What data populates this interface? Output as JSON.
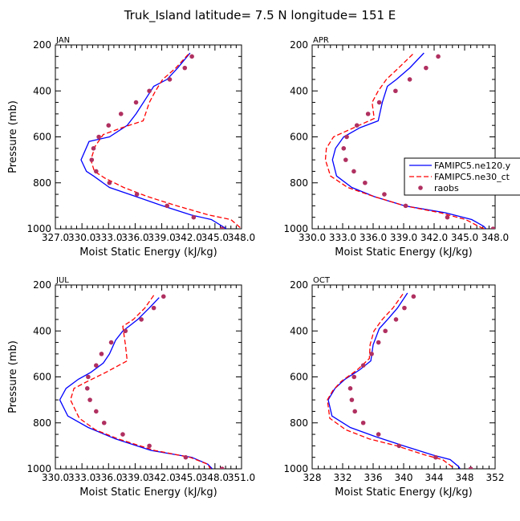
{
  "figure": {
    "title": "Truk_Island   latitude= 7.5 N longitude= 151 E"
  },
  "legend": {
    "placement": "right, overlapping APR panel",
    "entries": [
      {
        "label": "FAMIPC5.ne120.y",
        "color": "#0000ff",
        "style": "solid"
      },
      {
        "label": "FAMIPC5.ne30_ct",
        "color": "#ff0000",
        "style": "dashed"
      },
      {
        "label": "raobs",
        "color": "#b03060",
        "style": "dots"
      }
    ]
  },
  "chart_data": [
    {
      "type": "line",
      "panel": "JAN",
      "xlabel": "Moist Static Energy (kJ/kg)",
      "ylabel": "Pressure (mb)",
      "xlim": [
        327.0,
        348.0
      ],
      "xticks": [
        327.0,
        330.0,
        333.0,
        336.0,
        339.0,
        342.0,
        345.0,
        348.0
      ],
      "xtick_labels": [
        "327.0",
        "330.0",
        "333.0",
        "336.0",
        "339.0",
        "342.0",
        "345.0",
        "348.0"
      ],
      "ylim": [
        200,
        1000
      ],
      "yticks": [
        200,
        400,
        600,
        800,
        1000
      ],
      "ytick_labels": [
        "200",
        "400",
        "600",
        "800",
        "1000"
      ],
      "y_inverted": true,
      "series": [
        {
          "name": "FAMIPC5.ne120.y",
          "color": "#0000ff",
          "style": "solid",
          "points": [
            [
              342.2,
              235
            ],
            [
              340.8,
              300
            ],
            [
              339.6,
              350
            ],
            [
              338.1,
              380
            ],
            [
              337.1,
              440
            ],
            [
              336.1,
              500
            ],
            [
              335.1,
              550
            ],
            [
              333.1,
              600
            ],
            [
              330.8,
              620
            ],
            [
              329.9,
              700
            ],
            [
              330.5,
              750
            ],
            [
              331.3,
              770
            ],
            [
              333.1,
              820
            ],
            [
              336.1,
              860
            ],
            [
              339.1,
              900
            ],
            [
              342.3,
              940
            ],
            [
              344.6,
              960
            ],
            [
              346.3,
              1000
            ]
          ]
        },
        {
          "name": "FAMIPC5.ne30_ct",
          "color": "#ff0000",
          "style": "dashed",
          "points": [
            [
              342.0,
              240
            ],
            [
              340.6,
              300
            ],
            [
              339.1,
              350
            ],
            [
              338.3,
              400
            ],
            [
              337.6,
              450
            ],
            [
              336.9,
              530
            ],
            [
              334.5,
              560
            ],
            [
              332.4,
              590
            ],
            [
              331.5,
              640
            ],
            [
              331.0,
              700
            ],
            [
              331.4,
              750
            ],
            [
              332.6,
              780
            ],
            [
              334.7,
              820
            ],
            [
              337.4,
              860
            ],
            [
              340.7,
              900
            ],
            [
              344.3,
              940
            ],
            [
              346.8,
              960
            ],
            [
              348.0,
              1000
            ]
          ]
        },
        {
          "name": "raobs",
          "color": "#b03060",
          "style": "dots",
          "points": [
            [
              342.4,
              250
            ],
            [
              341.6,
              300
            ],
            [
              339.9,
              350
            ],
            [
              337.6,
              400
            ],
            [
              336.1,
              450
            ],
            [
              334.4,
              500
            ],
            [
              333.0,
              550
            ],
            [
              331.9,
              600
            ],
            [
              331.3,
              650
            ],
            [
              331.1,
              700
            ],
            [
              331.6,
              750
            ],
            [
              333.1,
              800
            ],
            [
              336.2,
              850
            ],
            [
              339.6,
              900
            ],
            [
              342.6,
              950
            ],
            [
              345.8,
              1000
            ]
          ]
        }
      ]
    },
    {
      "type": "line",
      "panel": "APR",
      "xlabel": "Moist Static Energy (kJ/kg)",
      "ylabel": "",
      "xlim": [
        330.0,
        348.0
      ],
      "xticks": [
        330.0,
        333.0,
        336.0,
        339.0,
        342.0,
        345.0,
        348.0
      ],
      "xtick_labels": [
        "330.0",
        "333.0",
        "336.0",
        "339.0",
        "342.0",
        "345.0",
        "348.0"
      ],
      "ylim": [
        200,
        1000
      ],
      "yticks": [
        200,
        400,
        600,
        800,
        1000
      ],
      "ytick_labels": [
        "200",
        "400",
        "600",
        "800",
        "1000"
      ],
      "y_inverted": true,
      "series": [
        {
          "name": "FAMIPC5.ne120.y",
          "color": "#0000ff",
          "style": "solid",
          "points": [
            [
              341.0,
              235
            ],
            [
              339.6,
              300
            ],
            [
              338.3,
              350
            ],
            [
              337.4,
              380
            ],
            [
              336.9,
              450
            ],
            [
              336.5,
              530
            ],
            [
              334.7,
              560
            ],
            [
              333.1,
              600
            ],
            [
              332.3,
              650
            ],
            [
              332.0,
              700
            ],
            [
              332.4,
              770
            ],
            [
              333.9,
              820
            ],
            [
              336.1,
              860
            ],
            [
              339.1,
              900
            ],
            [
              343.1,
              930
            ],
            [
              345.7,
              960
            ],
            [
              346.9,
              990
            ],
            [
              347.1,
              1000
            ]
          ]
        },
        {
          "name": "FAMIPC5.ne30_ct",
          "color": "#ff0000",
          "style": "dashed",
          "points": [
            [
              339.9,
              240
            ],
            [
              338.5,
              300
            ],
            [
              337.3,
              350
            ],
            [
              336.5,
              400
            ],
            [
              335.9,
              450
            ],
            [
              336.1,
              520
            ],
            [
              334.1,
              560
            ],
            [
              332.1,
              600
            ],
            [
              331.4,
              650
            ],
            [
              331.3,
              700
            ],
            [
              331.8,
              770
            ],
            [
              333.5,
              820
            ],
            [
              336.1,
              860
            ],
            [
              339.1,
              900
            ],
            [
              342.6,
              930
            ],
            [
              345.1,
              960
            ],
            [
              346.4,
              990
            ],
            [
              346.9,
              1000
            ]
          ]
        },
        {
          "name": "raobs",
          "color": "#b03060",
          "style": "dots",
          "points": [
            [
              342.4,
              250
            ],
            [
              341.2,
              300
            ],
            [
              339.6,
              350
            ],
            [
              338.2,
              400
            ],
            [
              336.6,
              450
            ],
            [
              335.5,
              500
            ],
            [
              334.4,
              550
            ],
            [
              333.4,
              600
            ],
            [
              333.1,
              650
            ],
            [
              333.3,
              700
            ],
            [
              334.1,
              750
            ],
            [
              335.2,
              800
            ],
            [
              337.1,
              850
            ],
            [
              339.2,
              900
            ],
            [
              343.3,
              950
            ],
            [
              347.8,
              1000
            ]
          ]
        }
      ]
    },
    {
      "type": "line",
      "panel": "JUL",
      "xlabel": "Moist Static Energy (kJ/kg)",
      "ylabel": "Pressure (mb)",
      "xlim": [
        330.0,
        351.0
      ],
      "xticks": [
        330.0,
        333.0,
        336.0,
        339.0,
        342.0,
        345.0,
        348.0,
        351.0
      ],
      "xtick_labels": [
        "330.0",
        "333.0",
        "336.0",
        "339.0",
        "342.0",
        "345.0",
        "348.0",
        "351.0"
      ],
      "ylim": [
        200,
        1000
      ],
      "yticks": [
        200,
        400,
        600,
        800,
        1000
      ],
      "ytick_labels": [
        "200",
        "400",
        "600",
        "800",
        "1000"
      ],
      "y_inverted": true,
      "series": [
        {
          "name": "FAMIPC5.ne120.y",
          "color": "#0000ff",
          "style": "solid",
          "points": [
            [
              341.7,
              255
            ],
            [
              340.6,
              300
            ],
            [
              339.3,
              350
            ],
            [
              338.3,
              380
            ],
            [
              337.6,
              400
            ],
            [
              336.8,
              440
            ],
            [
              336.1,
              500
            ],
            [
              335.4,
              540
            ],
            [
              334.0,
              580
            ],
            [
              332.6,
              610
            ],
            [
              331.2,
              650
            ],
            [
              330.5,
              700
            ],
            [
              331.4,
              770
            ],
            [
              333.7,
              820
            ],
            [
              336.8,
              870
            ],
            [
              340.8,
              920
            ],
            [
              345.4,
              950
            ],
            [
              347.2,
              980
            ],
            [
              347.7,
              1000
            ]
          ]
        },
        {
          "name": "FAMIPC5.ne30_ct",
          "color": "#ff0000",
          "style": "dashed",
          "points": [
            [
              341.1,
              245
            ],
            [
              340.1,
              300
            ],
            [
              338.8,
              350
            ],
            [
              337.6,
              380
            ],
            [
              337.9,
              460
            ],
            [
              338.1,
              530
            ],
            [
              335.7,
              580
            ],
            [
              333.6,
              620
            ],
            [
              332.1,
              650
            ],
            [
              331.7,
              700
            ],
            [
              332.7,
              780
            ],
            [
              334.5,
              830
            ],
            [
              337.1,
              870
            ],
            [
              341.2,
              920
            ],
            [
              345.2,
              950
            ],
            [
              347.2,
              980
            ],
            [
              347.5,
              1000
            ]
          ]
        },
        {
          "name": "raobs",
          "color": "#b03060",
          "style": "dots",
          "points": [
            [
              342.2,
              250
            ],
            [
              341.1,
              300
            ],
            [
              339.7,
              350
            ],
            [
              337.9,
              400
            ],
            [
              336.3,
              450
            ],
            [
              335.2,
              500
            ],
            [
              334.6,
              550
            ],
            [
              333.7,
              600
            ],
            [
              333.6,
              650
            ],
            [
              333.9,
              700
            ],
            [
              334.6,
              750
            ],
            [
              335.5,
              800
            ],
            [
              337.6,
              850
            ],
            [
              340.6,
              900
            ],
            [
              344.7,
              950
            ],
            [
              348.8,
              1000
            ]
          ]
        }
      ]
    },
    {
      "type": "line",
      "panel": "OCT",
      "xlabel": "Moist Static Energy (kJ/kg)",
      "ylabel": "",
      "xlim": [
        328,
        352
      ],
      "xticks": [
        328,
        332,
        336,
        340,
        344,
        348,
        352
      ],
      "xtick_labels": [
        "328",
        "332",
        "336",
        "340",
        "344",
        "348",
        "352"
      ],
      "ylim": [
        200,
        1000
      ],
      "yticks": [
        200,
        400,
        600,
        800,
        1000
      ],
      "ytick_labels": [
        "200",
        "400",
        "600",
        "800",
        "1000"
      ],
      "y_inverted": true,
      "series": [
        {
          "name": "FAMIPC5.ne120.y",
          "color": "#0000ff",
          "style": "solid",
          "points": [
            [
              340.5,
              235
            ],
            [
              339.2,
              300
            ],
            [
              337.9,
              350
            ],
            [
              336.8,
              390
            ],
            [
              336.0,
              460
            ],
            [
              335.7,
              530
            ],
            [
              334.2,
              570
            ],
            [
              332.3,
              610
            ],
            [
              331.0,
              650
            ],
            [
              330.1,
              700
            ],
            [
              330.6,
              770
            ],
            [
              333.0,
              820
            ],
            [
              336.3,
              860
            ],
            [
              340.0,
              900
            ],
            [
              343.8,
              940
            ],
            [
              346.1,
              960
            ],
            [
              347.2,
              990
            ],
            [
              347.4,
              1000
            ]
          ]
        },
        {
          "name": "FAMIPC5.ne30_ct",
          "color": "#ff0000",
          "style": "dashed",
          "points": [
            [
              339.9,
              240
            ],
            [
              338.6,
              300
            ],
            [
              337.2,
              350
            ],
            [
              336.1,
              400
            ],
            [
              335.6,
              460
            ],
            [
              335.5,
              520
            ],
            [
              333.9,
              570
            ],
            [
              331.8,
              620
            ],
            [
              330.7,
              660
            ],
            [
              330.0,
              700
            ],
            [
              330.3,
              780
            ],
            [
              332.4,
              830
            ],
            [
              335.5,
              870
            ],
            [
              339.1,
              900
            ],
            [
              342.8,
              940
            ],
            [
              345.1,
              960
            ],
            [
              346.3,
              990
            ],
            [
              346.6,
              1000
            ]
          ]
        },
        {
          "name": "raobs",
          "color": "#b03060",
          "style": "dots",
          "points": [
            [
              341.3,
              250
            ],
            [
              340.1,
              300
            ],
            [
              339.0,
              350
            ],
            [
              337.6,
              400
            ],
            [
              336.7,
              450
            ],
            [
              335.8,
              500
            ],
            [
              334.7,
              550
            ],
            [
              333.5,
              600
            ],
            [
              333.0,
              650
            ],
            [
              333.2,
              700
            ],
            [
              333.6,
              750
            ],
            [
              334.7,
              800
            ],
            [
              336.7,
              850
            ],
            [
              339.4,
              900
            ],
            [
              344.2,
              950
            ],
            [
              348.8,
              1000
            ]
          ]
        }
      ]
    }
  ]
}
